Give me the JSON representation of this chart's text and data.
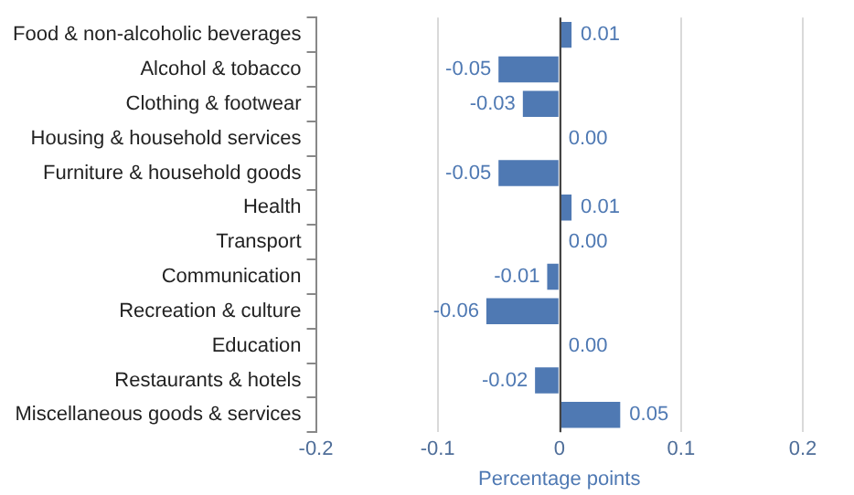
{
  "chart_data": {
    "type": "bar",
    "orientation": "horizontal",
    "categories": [
      "Food & non-alcoholic beverages",
      "Alcohol & tobacco",
      "Clothing & footwear",
      "Housing & household services",
      "Furniture & household goods",
      "Health",
      "Transport",
      "Communication",
      "Recreation & culture",
      "Education",
      "Restaurants & hotels",
      "Miscellaneous goods & services"
    ],
    "values": [
      0.01,
      -0.05,
      -0.03,
      0,
      -0.05,
      0.01,
      0,
      -0.01,
      -0.06,
      0,
      -0.02,
      0.05
    ],
    "value_labels": [
      "0.01",
      "-0.05",
      "-0.03",
      "0.00",
      "-0.05",
      "0.01",
      "0.00",
      "-0.01",
      "-0.06",
      "0.00",
      "-0.02",
      "0.05"
    ],
    "color": "#4f79b3",
    "xlim": [
      -0.2,
      0.2
    ],
    "xticks": [
      -0.2,
      -0.1,
      0,
      0.1,
      0.2
    ],
    "xlabel": "Percentage points",
    "grid": "x",
    "legend": false
  }
}
